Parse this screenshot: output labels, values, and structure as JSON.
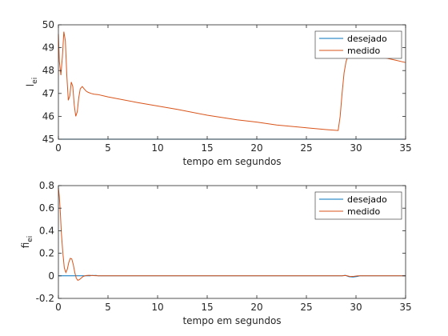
{
  "chart_data": [
    {
      "type": "line",
      "xlabel": "tempo em segundos",
      "ylabel_main": "l",
      "ylabel_sub": "ei",
      "xlim": [
        0,
        35
      ],
      "ylim": [
        45,
        50
      ],
      "xticks": [
        0,
        5,
        10,
        15,
        20,
        25,
        30,
        35
      ],
      "yticks": [
        45,
        46,
        47,
        48,
        49,
        50
      ],
      "grid": false,
      "legend_position": "top-right",
      "series": [
        {
          "name": "desejado",
          "color": "#0072BD",
          "x": [
            0,
            35
          ],
          "y": [
            45,
            45
          ]
        },
        {
          "name": "medido",
          "color": "#D95319",
          "x": [
            0,
            0.1,
            0.25,
            0.4,
            0.55,
            0.7,
            0.85,
            1.0,
            1.15,
            1.3,
            1.45,
            1.6,
            1.75,
            1.9,
            2.05,
            2.2,
            2.4,
            2.6,
            2.8,
            3.0,
            3.3,
            3.6,
            4.0,
            5,
            8,
            10,
            12,
            15,
            18,
            20,
            22,
            25,
            27,
            28.2,
            28.4,
            28.6,
            28.8,
            29.0,
            29.2,
            29.5,
            30.0,
            31,
            32,
            33,
            34,
            35
          ],
          "y": [
            49.6,
            48.4,
            47.8,
            48.6,
            49.7,
            49.3,
            47.8,
            46.7,
            46.9,
            47.5,
            47.3,
            46.5,
            46.0,
            46.2,
            46.8,
            47.2,
            47.3,
            47.2,
            47.1,
            47.05,
            47.0,
            46.97,
            46.95,
            46.85,
            46.6,
            46.45,
            46.3,
            46.05,
            45.85,
            45.75,
            45.62,
            45.5,
            45.42,
            45.38,
            46.0,
            47.0,
            47.9,
            48.4,
            48.65,
            48.8,
            48.85,
            48.75,
            48.65,
            48.55,
            48.45,
            48.35
          ]
        }
      ]
    },
    {
      "type": "line",
      "xlabel": "tempo em segundos",
      "ylabel_main": "fi",
      "ylabel_sub": "ei",
      "xlim": [
        0,
        35
      ],
      "ylim": [
        -0.2,
        0.8
      ],
      "xticks": [
        0,
        5,
        10,
        15,
        20,
        25,
        30,
        35
      ],
      "yticks": [
        -0.2,
        0,
        0.2,
        0.4,
        0.6,
        0.8
      ],
      "grid": false,
      "legend_position": "top-right",
      "series": [
        {
          "name": "desejado",
          "color": "#0072BD",
          "x": [
            0,
            3.2,
            3.4,
            3.6,
            3.8,
            4.0,
            28.6,
            28.9,
            29.3,
            29.7,
            30.1,
            30.4,
            35
          ],
          "y": [
            0,
            0,
            0.004,
            0.003,
            0.004,
            0,
            0,
            0.004,
            -0.008,
            -0.01,
            -0.006,
            0,
            0
          ]
        },
        {
          "name": "medido",
          "color": "#D95319",
          "x": [
            0,
            0.1,
            0.2,
            0.3,
            0.45,
            0.6,
            0.75,
            0.9,
            1.05,
            1.2,
            1.35,
            1.5,
            1.65,
            1.8,
            1.95,
            2.1,
            2.3,
            2.5,
            2.8,
            3.1,
            3.5,
            4.0,
            28.6,
            29.0,
            29.4,
            29.8,
            30.2,
            35
          ],
          "y": [
            0.78,
            0.7,
            0.55,
            0.38,
            0.2,
            0.07,
            0.03,
            0.06,
            0.12,
            0.155,
            0.15,
            0.1,
            0.03,
            -0.02,
            -0.04,
            -0.035,
            -0.02,
            -0.005,
            0.003,
            0.005,
            0.002,
            0,
            0,
            0.003,
            -0.006,
            -0.004,
            0,
            0
          ]
        }
      ]
    }
  ]
}
